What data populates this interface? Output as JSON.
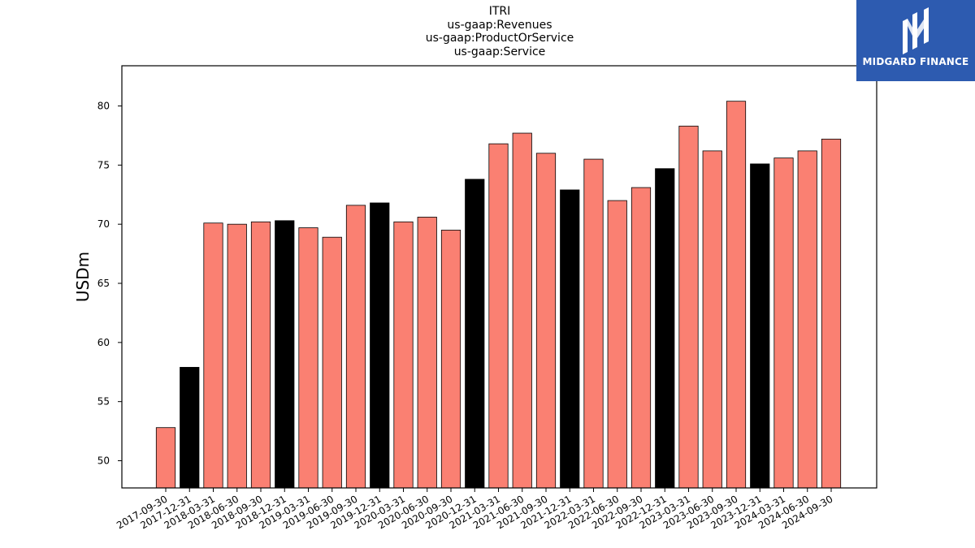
{
  "chart_data": {
    "type": "bar",
    "title_lines": [
      "ITRI",
      "us-gaap:Revenues",
      "us-gaap:ProductOrService",
      "us-gaap:Service"
    ],
    "xlabel": "",
    "ylabel": "USDm",
    "ylim": [
      47.7,
      83.4
    ],
    "yticks": [
      50,
      55,
      60,
      65,
      70,
      75,
      80
    ],
    "grid": false,
    "categories": [
      "2017-09-30",
      "2017-12-31",
      "2018-03-31",
      "2018-06-30",
      "2018-09-30",
      "2018-12-31",
      "2019-03-31",
      "2019-06-30",
      "2019-09-30",
      "2019-12-31",
      "2020-03-31",
      "2020-06-30",
      "2020-09-30",
      "2020-12-31",
      "2021-03-31",
      "2021-06-30",
      "2021-09-30",
      "2021-12-31",
      "2022-03-31",
      "2022-06-30",
      "2022-09-30",
      "2022-12-31",
      "2023-03-31",
      "2023-06-30",
      "2023-09-30",
      "2023-12-31",
      "2024-03-31",
      "2024-06-30",
      "2024-09-30"
    ],
    "values": [
      52.8,
      57.9,
      70.1,
      70.0,
      70.2,
      70.3,
      69.7,
      68.9,
      71.6,
      71.8,
      70.2,
      70.6,
      69.5,
      73.8,
      76.8,
      77.7,
      76.0,
      72.9,
      75.5,
      72.0,
      73.1,
      74.7,
      78.3,
      76.2,
      80.4,
      75.1,
      75.6,
      76.2,
      77.2
    ],
    "colors": {
      "quarter": "#fa8072",
      "year_end": "#000000",
      "edge": "#000000"
    }
  },
  "logo": {
    "text": "MIDGARD FINANCE",
    "icon": "midgard-logo-mark",
    "background": "#2d5bb0"
  }
}
